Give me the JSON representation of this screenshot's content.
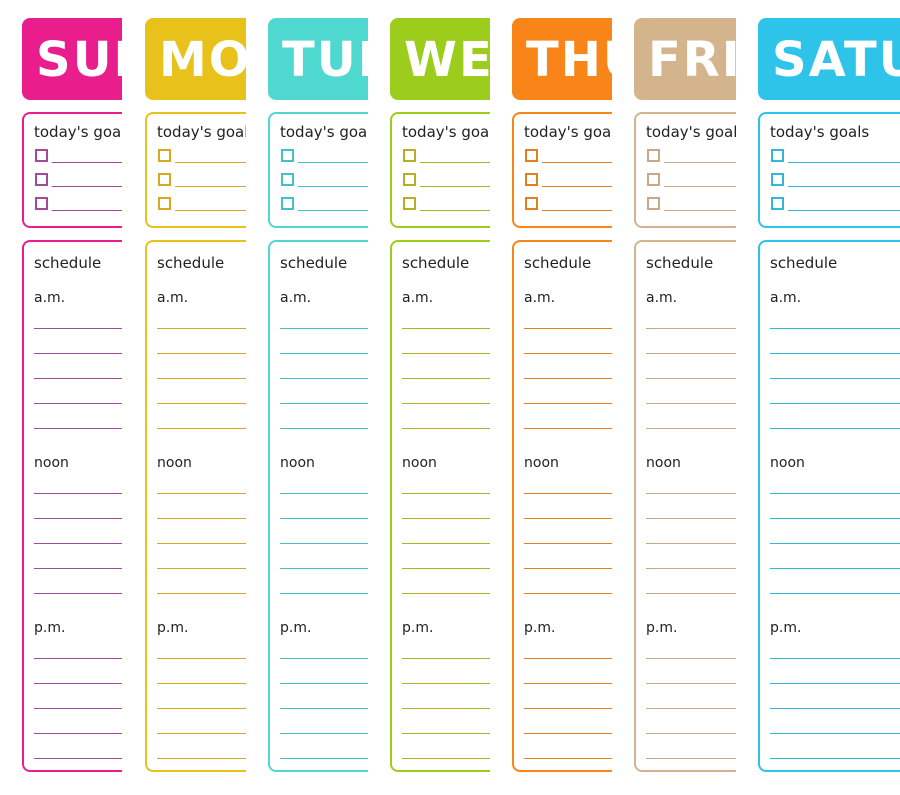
{
  "days": [
    {
      "name": "SUN",
      "color": "#e91e8c",
      "line": "#a04a9a"
    },
    {
      "name": "MO",
      "color": "#e8c21a",
      "line": "#d7a820"
    },
    {
      "name": "TUE",
      "color": "#4fd8cf",
      "line": "#43c0c8"
    },
    {
      "name": "WED",
      "color": "#9ccc1c",
      "line": "#b4b020"
    },
    {
      "name": "THU",
      "color": "#f98518",
      "line": "#e08020"
    },
    {
      "name": "FRI",
      "color": "#d4b48c",
      "line": "#c8a888"
    },
    {
      "name": "SATU",
      "color": "#2ec4ea",
      "line": "#30b8d8"
    }
  ],
  "labels": {
    "goals": "today's goals",
    "schedule": "schedule",
    "am": "a.m.",
    "noon": "noon",
    "pm": "p.m."
  }
}
